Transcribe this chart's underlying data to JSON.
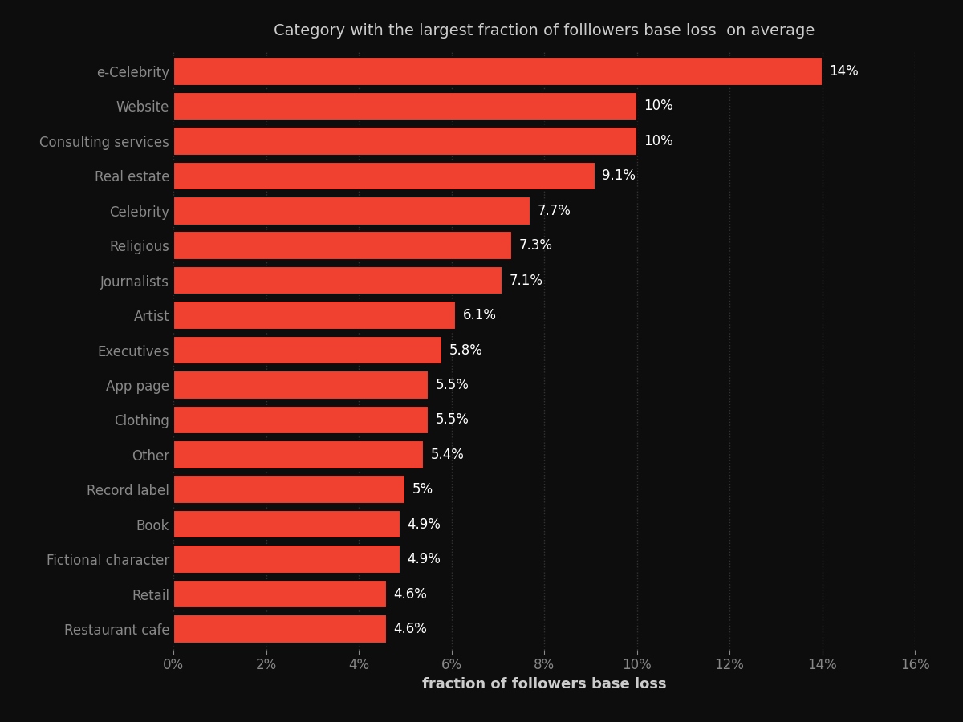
{
  "title": "Category with the largest fraction of folllowers base loss  on average",
  "xlabel": "fraction of followers base loss",
  "categories": [
    "e-Celebrity",
    "Website",
    "Consulting services",
    "Real estate",
    "Celebrity",
    "Religious",
    "Journalists",
    "Artist",
    "Executives",
    "App page",
    "Clothing",
    "Other",
    "Record label",
    "Book",
    "Fictional character",
    "Retail",
    "Restaurant cafe"
  ],
  "values": [
    14,
    10,
    10,
    9.1,
    7.7,
    7.3,
    7.1,
    6.1,
    5.8,
    5.5,
    5.5,
    5.4,
    5.0,
    4.9,
    4.9,
    4.6,
    4.6
  ],
  "labels": [
    "14%",
    "10%",
    "10%",
    "9.1%",
    "7.7%",
    "7.3%",
    "7.1%",
    "6.1%",
    "5.8%",
    "5.5%",
    "5.5%",
    "5.4%",
    "5%",
    "4.9%",
    "4.9%",
    "4.6%",
    "4.6%"
  ],
  "bar_color": "#f04030",
  "background_color": "#0d0d0d",
  "text_color": "#ffffff",
  "ylabel_color": "#888888",
  "title_color": "#cccccc",
  "xlabel_color": "#cccccc",
  "tick_color": "#888888",
  "grid_color": "#333333",
  "xlim": [
    0,
    16
  ],
  "xticks": [
    0,
    2,
    4,
    6,
    8,
    10,
    12,
    14,
    16
  ],
  "bar_height": 0.82,
  "title_fontsize": 14,
  "tick_fontsize": 12,
  "xlabel_fontsize": 13,
  "value_label_fontsize": 12
}
